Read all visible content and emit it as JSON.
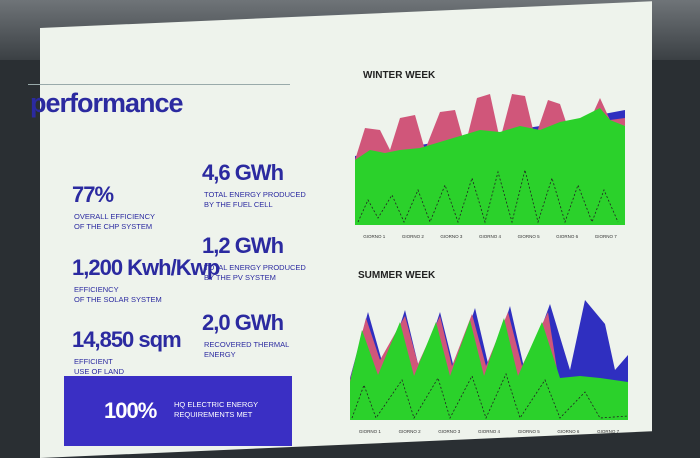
{
  "slide": {
    "heading": "performance",
    "stats": [
      {
        "value": "77%",
        "label": [
          "OVERALL EFFICIENCY",
          "OF THE CHP SYSTEM"
        ]
      },
      {
        "value": "4,6 GWh",
        "label": [
          "TOTAL ENERGY PRODUCED",
          "BY THE FUEL CELL"
        ]
      },
      {
        "value": "1,200 Kwh/Kwp",
        "label": [
          "EFFICIENCY",
          "OF THE SOLAR SYSTEM"
        ]
      },
      {
        "value": "1,2 GWh",
        "label": [
          "TOTAL ENERGY PRODUCED",
          "BY THE PV SYSTEM"
        ]
      },
      {
        "value": "14,850 sqm",
        "label": [
          "EFFICIENT",
          "USE OF LAND"
        ]
      },
      {
        "value": "2,0 GWh",
        "label": [
          "RECOVERED THERMAL",
          "ENERGY"
        ]
      }
    ],
    "highlight": {
      "value": "100%",
      "label": [
        "HQ ELECTRIC ENERGY",
        "REQUIREMENTS MET"
      ]
    },
    "charts": [
      {
        "title": "WINTER WEEK",
        "days": [
          "GIORNO 1",
          "GIORNO 2",
          "GIORNO 3",
          "GIORNO 4",
          "GIORNO 5",
          "GIORNO 6",
          "GIORNO 7"
        ]
      },
      {
        "title": "SUMMER WEEK",
        "days": [
          "GIORNO 1",
          "GIORNO 2",
          "GIORNO 3",
          "GIORNO 4",
          "GIORNO 5",
          "GIORNO 6",
          "GIORNO 7"
        ]
      }
    ]
  }
}
